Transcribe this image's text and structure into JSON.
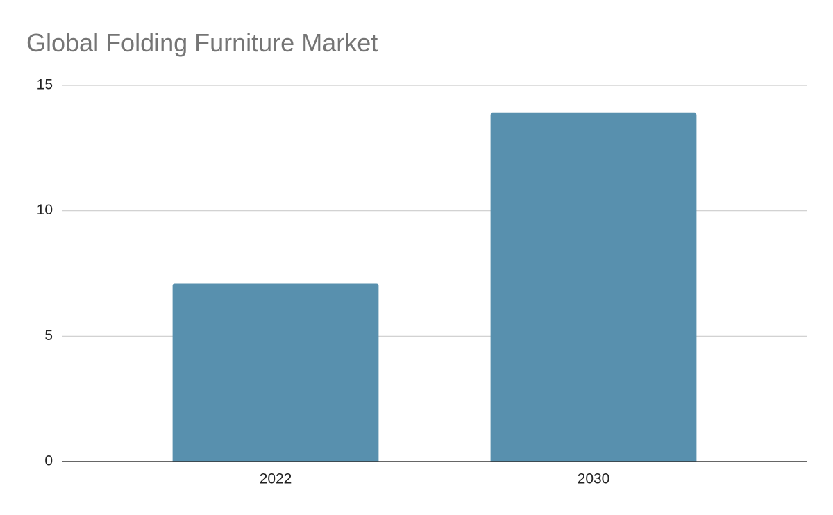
{
  "chart_data": {
    "type": "bar",
    "title": "Global Folding Furniture Market",
    "categories": [
      "2022",
      "2030"
    ],
    "values": [
      7.1,
      13.9
    ],
    "color": "#5890ae",
    "ylim": [
      0,
      15
    ],
    "yticks": [
      0,
      5,
      10,
      15
    ],
    "grid": true
  }
}
